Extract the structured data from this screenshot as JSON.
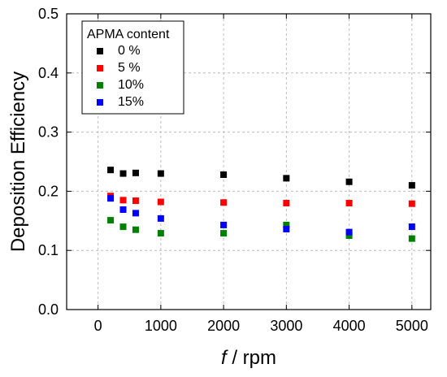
{
  "chart_data": {
    "type": "scatter",
    "xlabel_italic": "f",
    "xlabel_rest": " / rpm",
    "ylabel": "Deposition Efficiency",
    "xlim": [
      -500,
      5300
    ],
    "ylim": [
      0.0,
      0.5
    ],
    "x_ticks": [
      0,
      1000,
      2000,
      3000,
      4000,
      5000
    ],
    "y_ticks": [
      0.0,
      0.1,
      0.2,
      0.3,
      0.4,
      0.5
    ],
    "y_tick_labels": [
      "0.0",
      "0.1",
      "0.2",
      "0.3",
      "0.4",
      "0.5"
    ],
    "grid": true,
    "legend": {
      "title": "APMA content",
      "placement": "top-left"
    },
    "series": [
      {
        "name": "0 %",
        "color": "#000000",
        "x": [
          200,
          400,
          600,
          1000,
          2000,
          3000,
          4000,
          5000
        ],
        "y": [
          0.236,
          0.23,
          0.231,
          0.23,
          0.228,
          0.222,
          0.216,
          0.21
        ]
      },
      {
        "name": "5 %",
        "color": "#ff0000",
        "x": [
          200,
          400,
          600,
          1000,
          2000,
          3000,
          4000,
          5000
        ],
        "y": [
          0.192,
          0.185,
          0.184,
          0.182,
          0.181,
          0.18,
          0.18,
          0.179
        ]
      },
      {
        "name": "10%",
        "color": "#008000",
        "x": [
          200,
          400,
          600,
          1000,
          2000,
          3000,
          4000,
          5000
        ],
        "y": [
          0.151,
          0.14,
          0.135,
          0.129,
          0.129,
          0.143,
          0.125,
          0.12
        ]
      },
      {
        "name": "15%",
        "color": "#0000ff",
        "x": [
          200,
          400,
          600,
          1000,
          2000,
          3000,
          4000,
          5000
        ],
        "y": [
          0.188,
          0.169,
          0.163,
          0.154,
          0.143,
          0.136,
          0.131,
          0.14
        ]
      }
    ]
  }
}
